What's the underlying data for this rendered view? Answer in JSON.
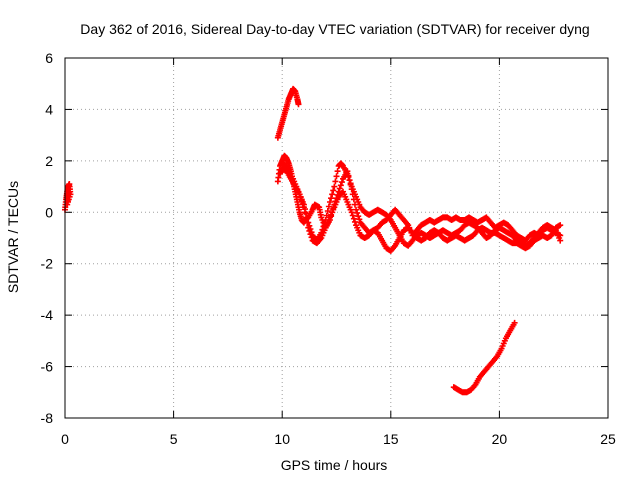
{
  "chart_data": {
    "type": "scatter",
    "title": "Day 362 of 2016, Sidereal Day-to-day VTEC variation (SDTVAR) for receiver dyng",
    "xlabel": "GPS time / hours",
    "ylabel": "SDTVAR / TECUs",
    "xlim": [
      0,
      25
    ],
    "ylim": [
      -8,
      6
    ],
    "x_ticks": [
      0,
      5,
      10,
      15,
      20,
      25
    ],
    "y_ticks": [
      -8,
      -6,
      -4,
      -2,
      0,
      2,
      4,
      6
    ],
    "x_tick_labels": [
      "0",
      "5",
      "10",
      "15",
      "20",
      "25"
    ],
    "y_tick_labels": [
      "-8",
      "-6",
      "-4",
      "-2",
      "0",
      "2",
      "4",
      "6"
    ],
    "grid": true,
    "marker": "+",
    "color": "#ff0000",
    "series": [
      {
        "name": "segment-start",
        "points": [
          [
            0.0,
            0.1
          ],
          [
            0.05,
            0.5
          ],
          [
            0.1,
            0.8
          ],
          [
            0.15,
            1.0
          ],
          [
            0.2,
            1.1
          ],
          [
            0.25,
            0.7
          ],
          [
            0.1,
            0.3
          ],
          [
            0.2,
            0.9
          ]
        ]
      },
      {
        "name": "segment-rise",
        "points": [
          [
            9.8,
            2.9
          ],
          [
            9.9,
            3.2
          ],
          [
            10.0,
            3.5
          ],
          [
            10.1,
            3.8
          ],
          [
            10.2,
            4.1
          ],
          [
            10.3,
            4.4
          ],
          [
            10.4,
            4.6
          ],
          [
            10.5,
            4.8
          ],
          [
            10.6,
            4.7
          ],
          [
            10.7,
            4.4
          ],
          [
            10.75,
            4.2
          ]
        ]
      },
      {
        "name": "track-a",
        "points": [
          [
            9.8,
            1.2
          ],
          [
            9.9,
            1.8
          ],
          [
            10.0,
            2.0
          ],
          [
            10.1,
            2.2
          ],
          [
            10.2,
            2.1
          ],
          [
            10.3,
            1.9
          ],
          [
            10.4,
            1.6
          ],
          [
            10.5,
            1.2
          ],
          [
            10.6,
            0.8
          ],
          [
            10.7,
            0.4
          ],
          [
            10.8,
            0.0
          ],
          [
            10.9,
            -0.3
          ],
          [
            11.0,
            -0.4
          ],
          [
            11.2,
            -0.2
          ],
          [
            11.4,
            0.1
          ],
          [
            11.5,
            0.3
          ],
          [
            11.7,
            0.2
          ],
          [
            11.8,
            -0.2
          ],
          [
            12.0,
            -0.6
          ],
          [
            12.2,
            -0.3
          ],
          [
            12.4,
            0.3
          ],
          [
            12.6,
            0.8
          ],
          [
            12.8,
            1.3
          ],
          [
            13.0,
            1.6
          ],
          [
            13.2,
            0.9
          ],
          [
            13.4,
            0.1
          ],
          [
            13.6,
            -0.4
          ],
          [
            13.8,
            -0.6
          ],
          [
            14.0,
            -0.8
          ],
          [
            14.2,
            -0.7
          ],
          [
            14.4,
            -0.6
          ],
          [
            14.6,
            -0.4
          ],
          [
            14.8,
            -0.3
          ],
          [
            15.0,
            -0.1
          ],
          [
            15.2,
            0.1
          ],
          [
            15.4,
            -0.1
          ],
          [
            15.6,
            -0.3
          ],
          [
            15.8,
            -0.5
          ],
          [
            16.0,
            -0.9
          ],
          [
            16.2,
            -0.7
          ],
          [
            16.4,
            -0.5
          ],
          [
            16.6,
            -0.4
          ],
          [
            16.8,
            -0.3
          ],
          [
            17.0,
            -0.4
          ],
          [
            17.2,
            -0.3
          ],
          [
            17.4,
            -0.2
          ],
          [
            17.6,
            -0.2
          ],
          [
            17.8,
            -0.3
          ],
          [
            18.0,
            -0.2
          ],
          [
            18.2,
            -0.3
          ],
          [
            18.4,
            -0.3
          ],
          [
            18.6,
            -0.2
          ],
          [
            18.8,
            -0.3
          ],
          [
            19.0,
            -0.4
          ],
          [
            19.2,
            -0.3
          ],
          [
            19.4,
            -0.2
          ],
          [
            19.6,
            -0.4
          ],
          [
            19.8,
            -0.6
          ],
          [
            20.0,
            -0.5
          ],
          [
            20.2,
            -0.4
          ],
          [
            20.4,
            -0.5
          ],
          [
            20.6,
            -0.7
          ],
          [
            20.8,
            -0.9
          ],
          [
            21.0,
            -1.0
          ],
          [
            21.2,
            -1.1
          ],
          [
            21.4,
            -0.9
          ],
          [
            21.6,
            -0.8
          ],
          [
            21.8,
            -0.9
          ],
          [
            22.0,
            -0.7
          ],
          [
            22.2,
            -0.6
          ],
          [
            22.4,
            -0.7
          ],
          [
            22.6,
            -0.8
          ],
          [
            22.8,
            -0.9
          ]
        ]
      },
      {
        "name": "track-b",
        "points": [
          [
            9.9,
            1.5
          ],
          [
            10.0,
            1.7
          ],
          [
            10.2,
            1.6
          ],
          [
            10.4,
            1.3
          ],
          [
            10.6,
            1.0
          ],
          [
            10.8,
            0.7
          ],
          [
            11.0,
            0.3
          ],
          [
            11.2,
            -0.4
          ],
          [
            11.4,
            -0.9
          ],
          [
            11.6,
            -1.1
          ],
          [
            11.8,
            -0.8
          ],
          [
            12.0,
            -0.3
          ],
          [
            12.2,
            0.4
          ],
          [
            12.4,
            1.0
          ],
          [
            12.6,
            1.8
          ],
          [
            12.7,
            1.9
          ],
          [
            12.8,
            1.8
          ],
          [
            13.0,
            1.5
          ],
          [
            13.2,
            1.0
          ],
          [
            13.4,
            0.6
          ],
          [
            13.6,
            0.2
          ],
          [
            13.8,
            0.0
          ],
          [
            14.0,
            -0.1
          ],
          [
            14.2,
            0.0
          ],
          [
            14.4,
            0.1
          ],
          [
            14.6,
            0.0
          ],
          [
            14.8,
            -0.1
          ],
          [
            15.0,
            -0.3
          ],
          [
            15.2,
            -0.6
          ],
          [
            15.4,
            -0.9
          ],
          [
            15.6,
            -1.2
          ],
          [
            15.8,
            -1.3
          ],
          [
            16.0,
            -1.1
          ],
          [
            16.2,
            -0.9
          ],
          [
            16.4,
            -0.8
          ],
          [
            16.6,
            -0.9
          ],
          [
            16.8,
            -1.0
          ],
          [
            17.0,
            -0.9
          ],
          [
            17.2,
            -0.8
          ],
          [
            17.4,
            -0.7
          ],
          [
            17.6,
            -0.8
          ],
          [
            17.8,
            -0.9
          ],
          [
            18.0,
            -0.8
          ],
          [
            18.2,
            -0.7
          ],
          [
            18.4,
            -0.5
          ],
          [
            18.6,
            -0.4
          ],
          [
            18.8,
            -0.5
          ],
          [
            19.0,
            -0.6
          ],
          [
            19.2,
            -0.8
          ],
          [
            19.4,
            -1.0
          ],
          [
            19.6,
            -0.9
          ],
          [
            19.8,
            -0.7
          ],
          [
            20.0,
            -0.6
          ],
          [
            20.2,
            -0.7
          ],
          [
            20.4,
            -0.8
          ],
          [
            20.6,
            -0.9
          ],
          [
            20.8,
            -1.1
          ],
          [
            21.0,
            -1.2
          ],
          [
            21.2,
            -1.3
          ],
          [
            21.4,
            -1.2
          ],
          [
            21.6,
            -1.0
          ],
          [
            21.8,
            -0.8
          ],
          [
            22.0,
            -0.6
          ],
          [
            22.2,
            -0.5
          ],
          [
            22.4,
            -0.6
          ],
          [
            22.6,
            -0.7
          ],
          [
            22.8,
            -1.1
          ]
        ]
      },
      {
        "name": "track-c",
        "points": [
          [
            10.0,
            1.9
          ],
          [
            10.2,
            1.8
          ],
          [
            10.4,
            1.5
          ],
          [
            10.6,
            1.1
          ],
          [
            10.8,
            0.7
          ],
          [
            11.0,
            0.2
          ],
          [
            11.2,
            -0.6
          ],
          [
            11.4,
            -1.1
          ],
          [
            11.6,
            -1.2
          ],
          [
            11.8,
            -1.0
          ],
          [
            12.0,
            -0.6
          ],
          [
            12.2,
            -0.2
          ],
          [
            12.4,
            0.2
          ],
          [
            12.6,
            0.6
          ],
          [
            12.8,
            0.8
          ],
          [
            13.0,
            0.4
          ],
          [
            13.2,
            0.0
          ],
          [
            13.4,
            -0.5
          ],
          [
            13.6,
            -0.9
          ],
          [
            13.8,
            -1.0
          ],
          [
            14.0,
            -0.9
          ],
          [
            14.2,
            -0.7
          ],
          [
            14.4,
            -0.8
          ],
          [
            14.6,
            -1.1
          ],
          [
            14.8,
            -1.4
          ],
          [
            15.0,
            -1.5
          ],
          [
            15.2,
            -1.3
          ],
          [
            15.4,
            -1.0
          ],
          [
            15.6,
            -0.7
          ],
          [
            15.8,
            -0.6
          ],
          [
            16.0,
            -0.8
          ],
          [
            16.2,
            -1.0
          ],
          [
            16.4,
            -1.1
          ],
          [
            16.6,
            -1.0
          ],
          [
            16.8,
            -0.8
          ],
          [
            17.0,
            -0.7
          ],
          [
            17.2,
            -0.8
          ],
          [
            17.4,
            -1.0
          ],
          [
            17.6,
            -1.1
          ],
          [
            17.8,
            -1.0
          ],
          [
            18.0,
            -0.9
          ],
          [
            18.2,
            -1.0
          ],
          [
            18.4,
            -1.1
          ],
          [
            18.6,
            -1.0
          ],
          [
            18.8,
            -0.9
          ],
          [
            19.0,
            -0.7
          ],
          [
            19.2,
            -0.6
          ],
          [
            19.4,
            -0.7
          ],
          [
            19.6,
            -0.8
          ],
          [
            19.8,
            -0.8
          ],
          [
            20.0,
            -0.9
          ],
          [
            20.2,
            -1.0
          ],
          [
            20.4,
            -1.1
          ],
          [
            20.6,
            -1.2
          ],
          [
            20.8,
            -1.2
          ],
          [
            21.0,
            -1.3
          ],
          [
            21.2,
            -1.4
          ],
          [
            21.4,
            -1.3
          ],
          [
            21.6,
            -1.1
          ],
          [
            21.8,
            -1.0
          ],
          [
            22.0,
            -0.9
          ],
          [
            22.2,
            -1.0
          ],
          [
            22.4,
            -0.9
          ],
          [
            22.6,
            -0.6
          ],
          [
            22.8,
            -0.5
          ]
        ]
      },
      {
        "name": "segment-low",
        "points": [
          [
            17.9,
            -6.8
          ],
          [
            18.1,
            -6.9
          ],
          [
            18.3,
            -7.0
          ],
          [
            18.5,
            -7.0
          ],
          [
            18.7,
            -6.9
          ],
          [
            18.9,
            -6.7
          ],
          [
            19.1,
            -6.4
          ],
          [
            19.3,
            -6.2
          ],
          [
            19.5,
            -6.0
          ],
          [
            19.7,
            -5.8
          ],
          [
            19.9,
            -5.6
          ],
          [
            20.1,
            -5.3
          ],
          [
            20.3,
            -4.9
          ],
          [
            20.5,
            -4.6
          ],
          [
            20.7,
            -4.3
          ]
        ]
      }
    ]
  }
}
